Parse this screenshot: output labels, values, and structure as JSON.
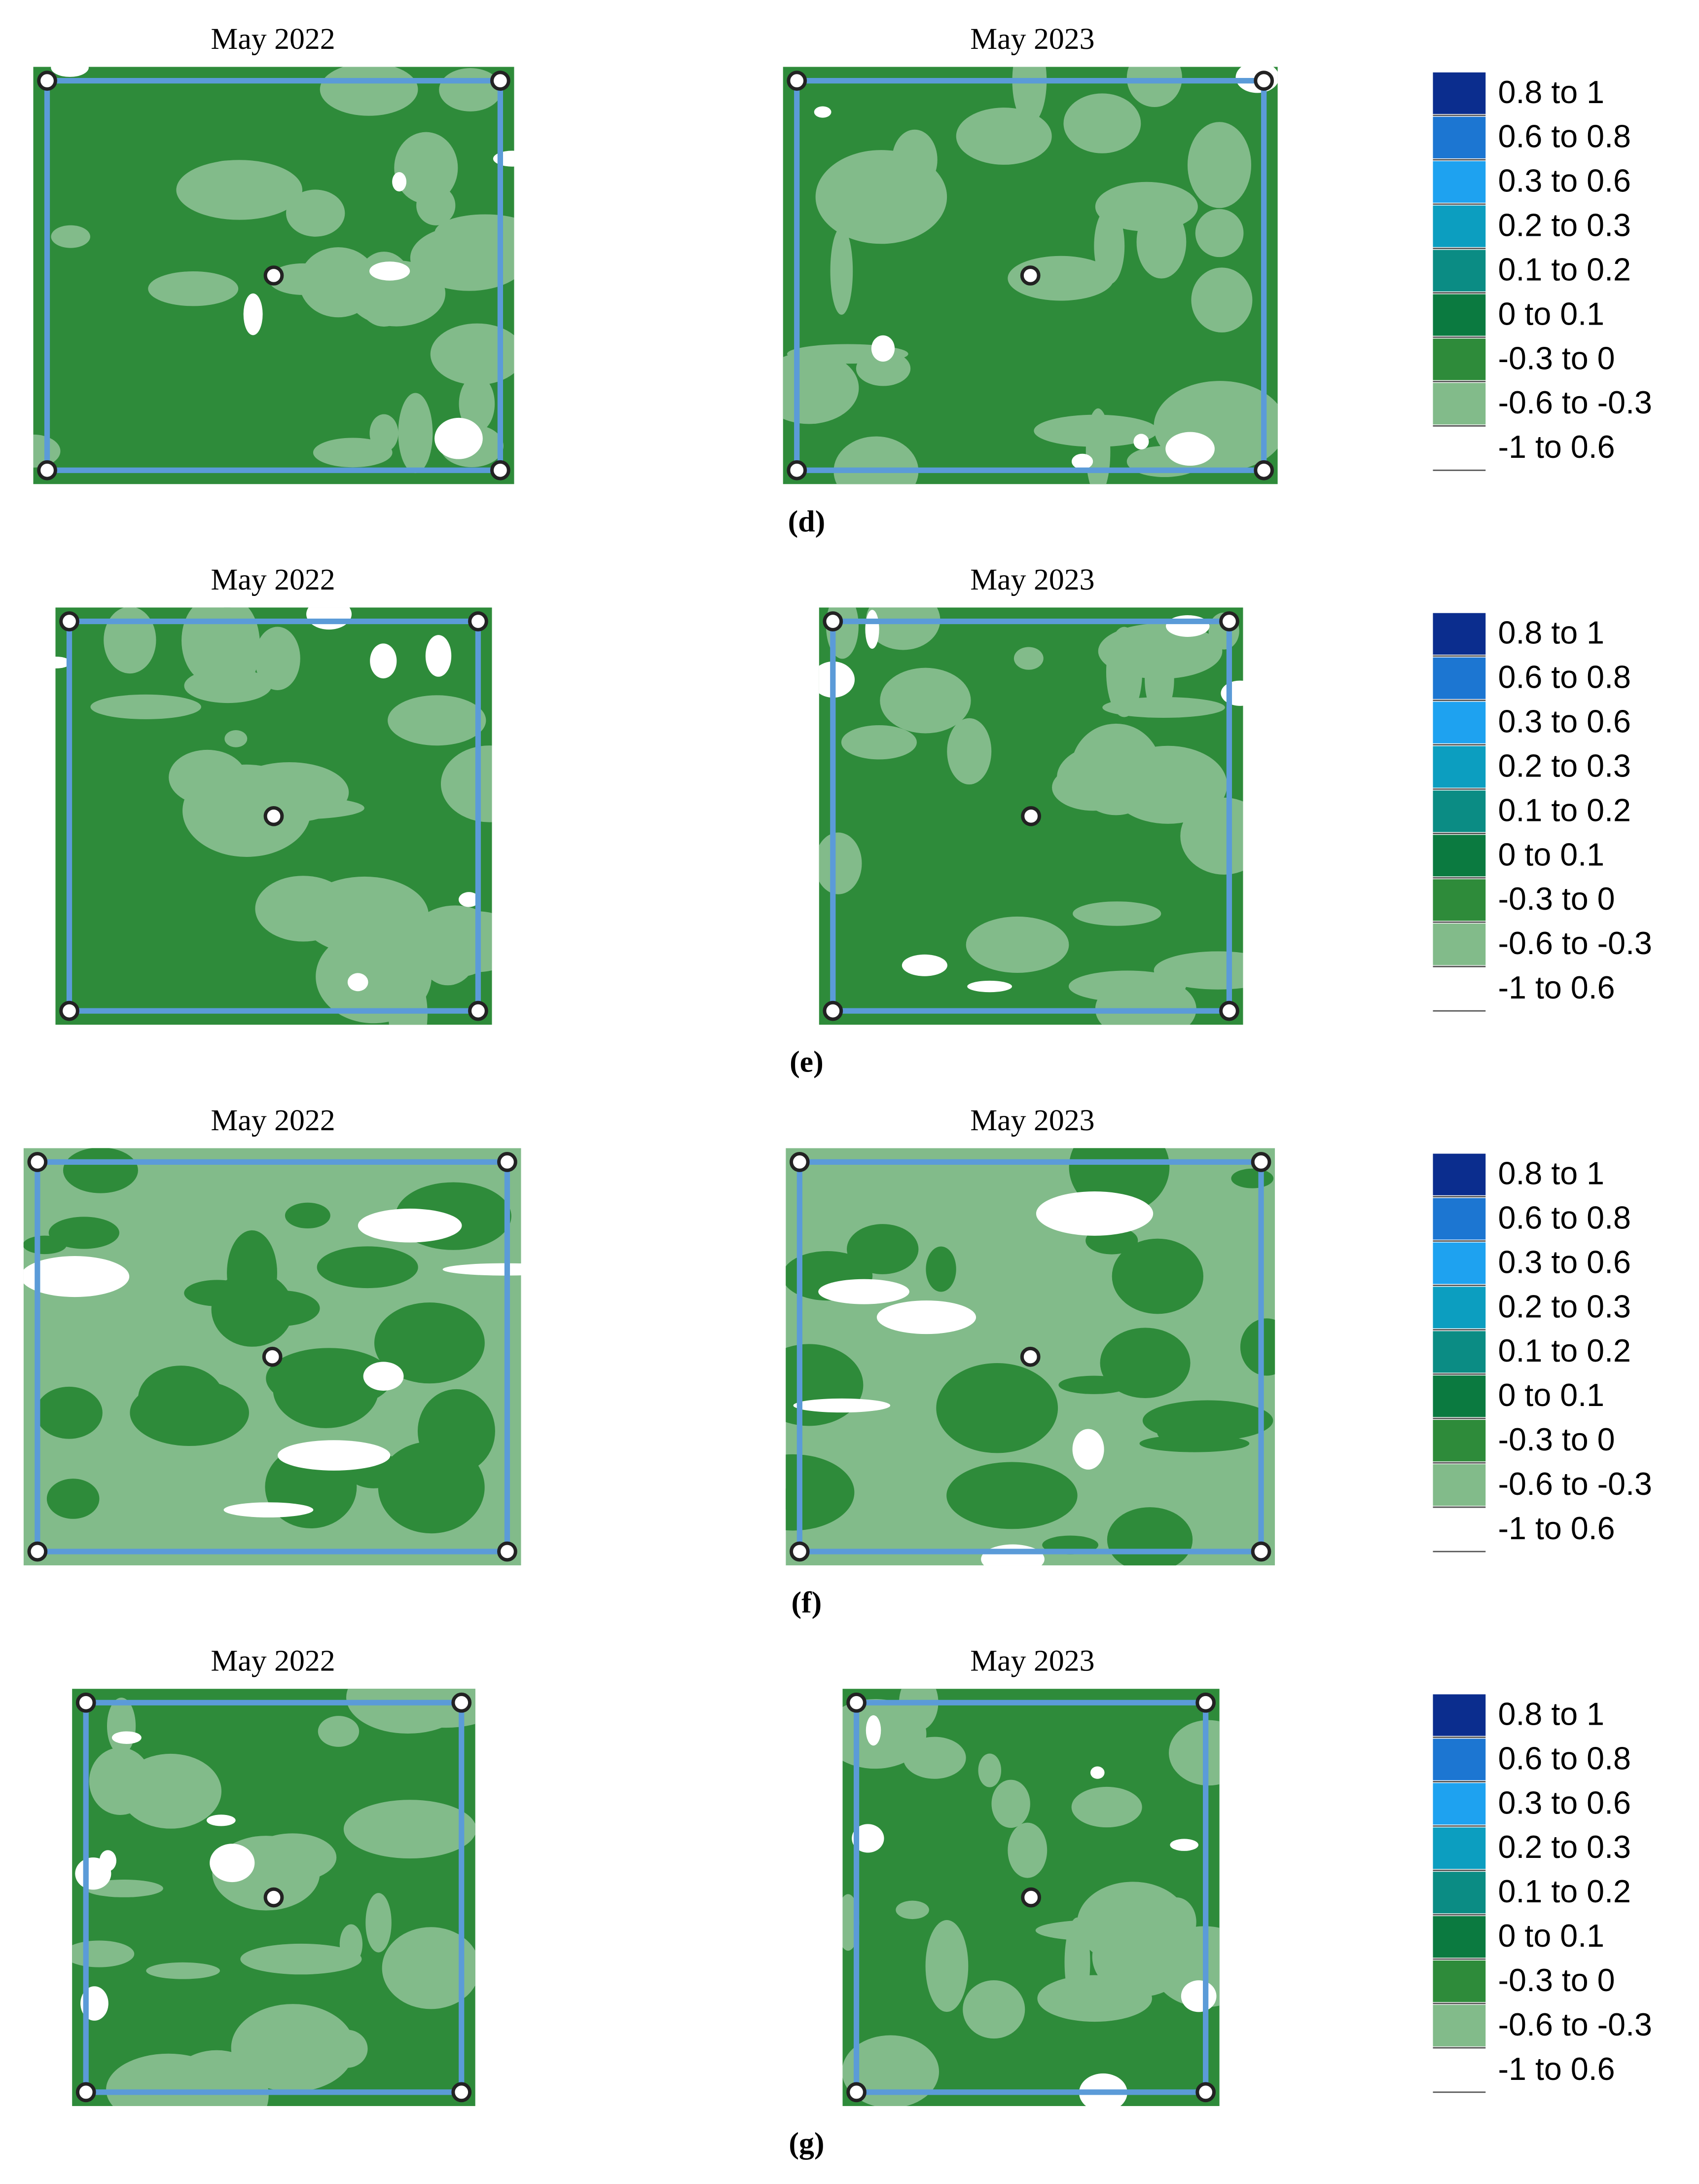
{
  "panels": [
    {
      "caption": "(d)",
      "maps": [
        {
          "title": "May 2022"
        },
        {
          "title": "May 2023"
        }
      ],
      "legend": [
        {
          "label": "0.8 to 1",
          "color": "#0b2d8e"
        },
        {
          "label": "0.6 to 0.8",
          "color": "#1c76d2"
        },
        {
          "label": "0.3 to 0.6",
          "color": "#1ea2f0"
        },
        {
          "label": "0.2 to 0.3",
          "color": "#0c9ec0"
        },
        {
          "label": "0.1 to 0.2",
          "color": "#0b8c84"
        },
        {
          "label": "0 to 0.1",
          "color": "#0b7a40"
        },
        {
          "label": "-0.3 to 0",
          "color": "#2e8b3a"
        },
        {
          "label": "-0.6 to -0.3",
          "color": "#82bb8a"
        },
        {
          "label": "-1 to 0.6",
          "color": "#ffffff"
        }
      ]
    },
    {
      "caption": "(e)",
      "maps": [
        {
          "title": "May 2022"
        },
        {
          "title": "May 2023"
        }
      ],
      "legend": [
        {
          "label": "0.8 to 1",
          "color": "#0b2d8e"
        },
        {
          "label": "0.6 to 0.8",
          "color": "#1c76d2"
        },
        {
          "label": "0.3 to 0.6",
          "color": "#1ea2f0"
        },
        {
          "label": "0.2 to 0.3",
          "color": "#0c9ec0"
        },
        {
          "label": "0.1 to 0.2",
          "color": "#0b8c84"
        },
        {
          "label": "0 to 0.1",
          "color": "#0b7a40"
        },
        {
          "label": "-0.3 to 0",
          "color": "#2e8b3a"
        },
        {
          "label": "-0.6 to -0.3",
          "color": "#82bb8a"
        },
        {
          "label": "-1 to 0.6",
          "color": "#ffffff"
        }
      ]
    },
    {
      "caption": "(f)",
      "maps": [
        {
          "title": "May 2022"
        },
        {
          "title": "May 2023"
        }
      ],
      "legend": [
        {
          "label": "0.8 to 1",
          "color": "#0b2d8e"
        },
        {
          "label": "0.6 to 0.8",
          "color": "#1c76d2"
        },
        {
          "label": "0.3 to 0.6",
          "color": "#1ea2f0"
        },
        {
          "label": "0.2 to 0.3",
          "color": "#0c9ec0"
        },
        {
          "label": "0.1 to 0.2",
          "color": "#0b8c84"
        },
        {
          "label": "0 to 0.1",
          "color": "#0b7a40"
        },
        {
          "label": "-0.3 to 0",
          "color": "#2e8b3a"
        },
        {
          "label": "-0.6 to -0.3",
          "color": "#82bb8a"
        },
        {
          "label": "-1 to 0.6",
          "color": "#ffffff"
        }
      ]
    },
    {
      "caption": "(g)",
      "maps": [
        {
          "title": "May 2022"
        },
        {
          "title": "May 2023"
        }
      ],
      "legend": [
        {
          "label": "0.8 to 1",
          "color": "#0b2d8e"
        },
        {
          "label": "0.6 to 0.8",
          "color": "#1c76d2"
        },
        {
          "label": "0.3 to 0.6",
          "color": "#1ea2f0"
        },
        {
          "label": "0.2 to 0.3",
          "color": "#0c9ec0"
        },
        {
          "label": "0.1 to 0.2",
          "color": "#0b8c84"
        },
        {
          "label": "0 to 0.1",
          "color": "#0b7a40"
        },
        {
          "label": "-0.3 to 0",
          "color": "#2e8b3a"
        },
        {
          "label": "-0.6 to -0.3",
          "color": "#82bb8a"
        },
        {
          "label": "-1 to 0.6",
          "color": "#ffffff"
        }
      ]
    }
  ]
}
